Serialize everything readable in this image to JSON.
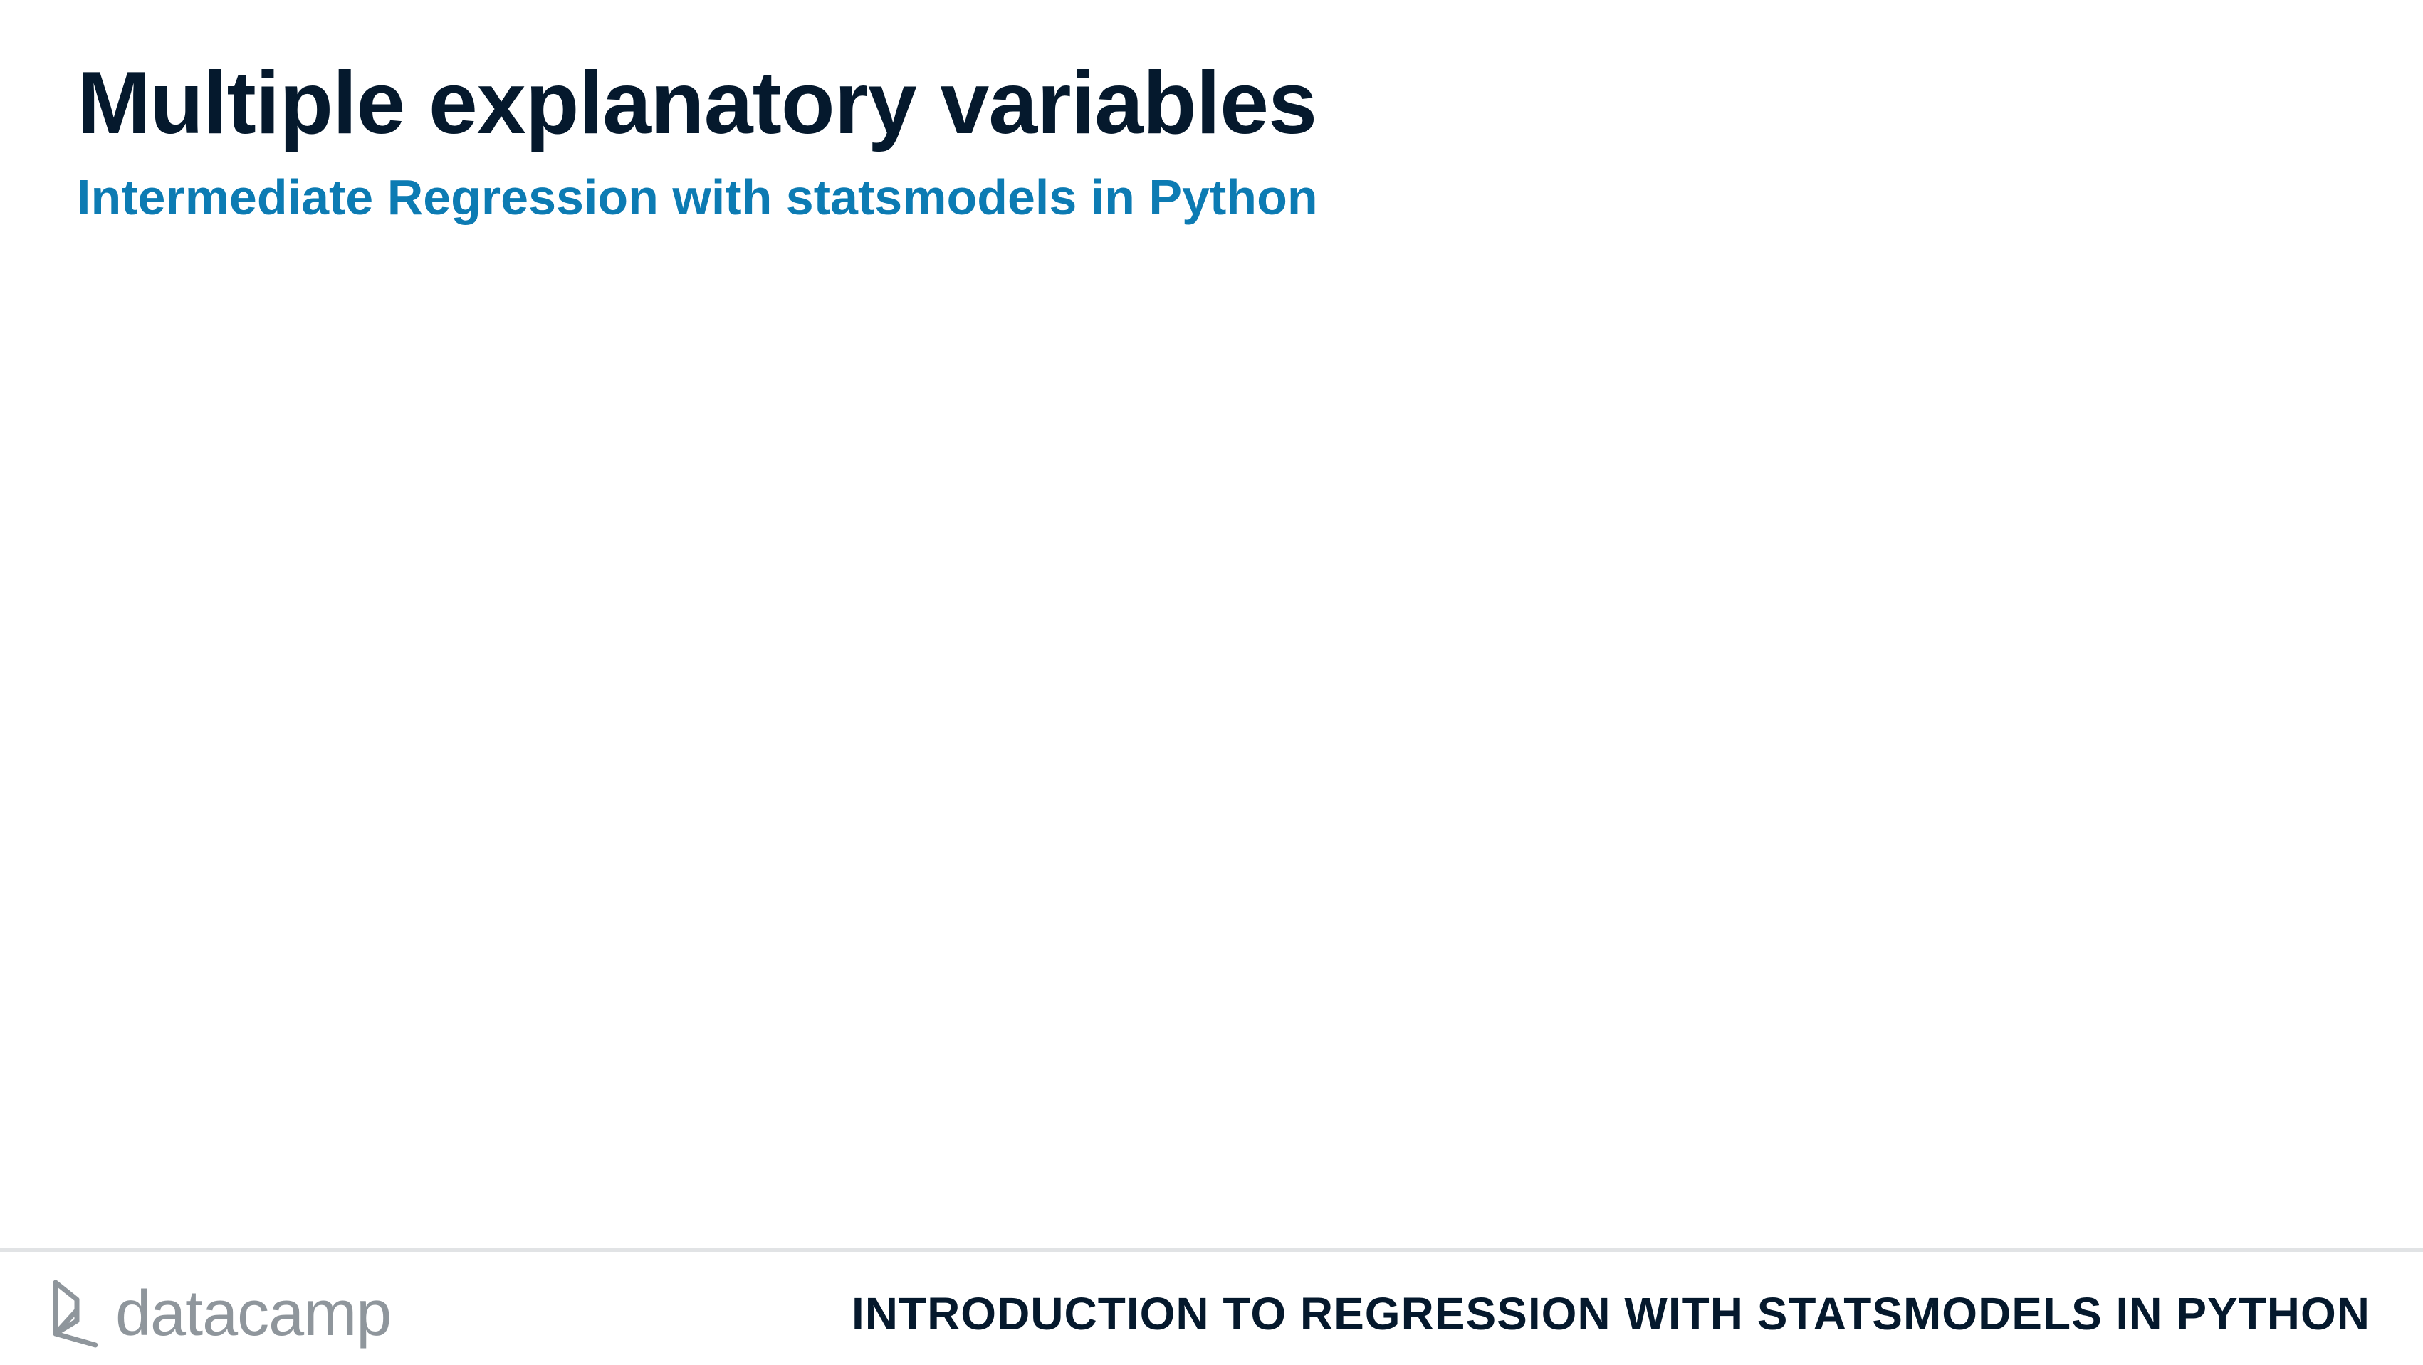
{
  "slide": {
    "title": "Multiple explanatory variables",
    "subtitle": "Intermediate Regression with statsmodels in Python"
  },
  "footer": {
    "logo_text": "datacamp",
    "logo_icon": "datacamp-logo-icon",
    "course_name": "INTRODUCTION TO REGRESSION WITH STATSMODELS IN PYTHON"
  },
  "colors": {
    "title": "#05192d",
    "subtitle": "#0c7bb3",
    "logo": "#8f969c",
    "divider": "#e1e3e5",
    "background": "#ffffff"
  }
}
